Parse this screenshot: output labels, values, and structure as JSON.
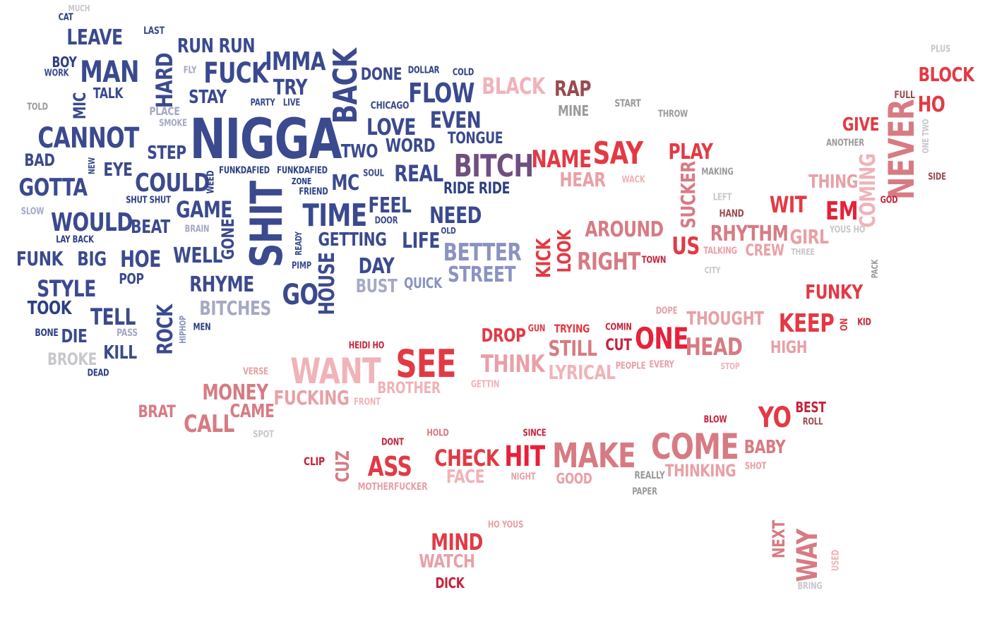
{
  "colors": {
    "blue_dark": "#2e3f82",
    "blue": "#3b4a8e",
    "blue_mid": "#5360a0",
    "blue_light": "#8a93c0",
    "gray_blue": "#a5a9c4",
    "gray": "#9a9a9a",
    "gray_light": "#c8c8cc",
    "plum": "#6f4f7f",
    "pink_light": "#f0b3b8",
    "pink": "#e8a0a6",
    "rose": "#d77b83",
    "red": "#e23a45",
    "red_bright": "#e8203a",
    "crimson": "#c4243b",
    "maroon": "#9a4a50",
    "brown_gray": "#8a6a6a"
  },
  "words": [
    {
      "text": "MUCH"
    },
    {
      "text": "CAT"
    },
    {
      "text": "LAST"
    },
    {
      "text": "LEAVE"
    },
    {
      "text": "BOY"
    },
    {
      "text": "WORK"
    },
    {
      "text": "MAN"
    },
    {
      "text": "MIC"
    },
    {
      "text": "TALK"
    },
    {
      "text": "TOLD"
    },
    {
      "text": "HARD"
    },
    {
      "text": "FLY"
    },
    {
      "text": "PLACE"
    },
    {
      "text": "SMOKE"
    },
    {
      "text": "RUN RUN"
    },
    {
      "text": "FUCK"
    },
    {
      "text": "STAY"
    },
    {
      "text": "PARTY"
    },
    {
      "text": "LIVE"
    },
    {
      "text": "IMMA"
    },
    {
      "text": "TRY"
    },
    {
      "text": "BACK"
    },
    {
      "text": "DONE"
    },
    {
      "text": "DOLLAR"
    },
    {
      "text": "COLD"
    },
    {
      "text": "CHICAGO"
    },
    {
      "text": "FLOW"
    },
    {
      "text": "BLACK"
    },
    {
      "text": "RAP"
    },
    {
      "text": "MINE"
    },
    {
      "text": "START"
    },
    {
      "text": "THROW"
    },
    {
      "text": "PLUS"
    },
    {
      "text": "BLOCK"
    },
    {
      "text": "FULL"
    },
    {
      "text": "HO"
    },
    {
      "text": "CANNOT"
    },
    {
      "text": "BAD"
    },
    {
      "text": "NEW"
    },
    {
      "text": "EYE"
    },
    {
      "text": "STEP"
    },
    {
      "text": "NIGGA"
    },
    {
      "text": "LOVE"
    },
    {
      "text": "EVEN"
    },
    {
      "text": "TONGUE"
    },
    {
      "text": "WORD"
    },
    {
      "text": "TWO"
    },
    {
      "text": "BITCH"
    },
    {
      "text": "NAME"
    },
    {
      "text": "SAY"
    },
    {
      "text": "PLAY"
    },
    {
      "text": "GIVE"
    },
    {
      "text": "ANOTHER"
    },
    {
      "text": "NEVER"
    },
    {
      "text": "ONE TWO"
    },
    {
      "text": "GOTTA"
    },
    {
      "text": "COULD"
    },
    {
      "text": "WEED"
    },
    {
      "text": "FUNKDAFIED"
    },
    {
      "text": "FUNKDAFIED"
    },
    {
      "text": "ZONE"
    },
    {
      "text": "FRIEND"
    },
    {
      "text": "MC"
    },
    {
      "text": "SOUL"
    },
    {
      "text": "REAL"
    },
    {
      "text": "RIDE RIDE"
    },
    {
      "text": "HEAR"
    },
    {
      "text": "WACK"
    },
    {
      "text": "SUCKER"
    },
    {
      "text": "MAKING"
    },
    {
      "text": "THING"
    },
    {
      "text": "COMING"
    },
    {
      "text": "SIDE"
    },
    {
      "text": "SHUT SHUT"
    },
    {
      "text": "SLOW"
    },
    {
      "text": "GAME"
    },
    {
      "text": "WOULD"
    },
    {
      "text": "BEAT"
    },
    {
      "text": "BRAIN"
    },
    {
      "text": "SHIT"
    },
    {
      "text": "TIME"
    },
    {
      "text": "FEEL"
    },
    {
      "text": "NEED"
    },
    {
      "text": "LEFT"
    },
    {
      "text": "HAND"
    },
    {
      "text": "WIT"
    },
    {
      "text": "EM"
    },
    {
      "text": "GOD"
    },
    {
      "text": "LAY BACK"
    },
    {
      "text": "GONE"
    },
    {
      "text": "DOOR"
    },
    {
      "text": "READY"
    },
    {
      "text": "GETTING"
    },
    {
      "text": "LIFE"
    },
    {
      "text": "OLD"
    },
    {
      "text": "AROUND"
    },
    {
      "text": "RHYTHM"
    },
    {
      "text": "GIRL"
    },
    {
      "text": "YOUS HO"
    },
    {
      "text": "FUNK"
    },
    {
      "text": "BIG"
    },
    {
      "text": "HOE"
    },
    {
      "text": "WELL"
    },
    {
      "text": "PIMP"
    },
    {
      "text": "BETTER"
    },
    {
      "text": "KICK"
    },
    {
      "text": "LOOK"
    },
    {
      "text": "US"
    },
    {
      "text": "TALKING"
    },
    {
      "text": "CREW"
    },
    {
      "text": "THREE"
    },
    {
      "text": "DAY"
    },
    {
      "text": "RIGHT"
    },
    {
      "text": "TOWN"
    },
    {
      "text": "CITY"
    },
    {
      "text": "PACK"
    },
    {
      "text": "POP"
    },
    {
      "text": "STYLE"
    },
    {
      "text": "RHYME"
    },
    {
      "text": "HOUSE"
    },
    {
      "text": "BUST"
    },
    {
      "text": "QUICK"
    },
    {
      "text": "STREET"
    },
    {
      "text": "GO"
    },
    {
      "text": "FUNKY"
    },
    {
      "text": "TOOK"
    },
    {
      "text": "TELL"
    },
    {
      "text": "BITCHES"
    },
    {
      "text": "ROCK"
    },
    {
      "text": "HIPHOP"
    },
    {
      "text": "DOPE"
    },
    {
      "text": "THOUGHT"
    },
    {
      "text": "KEEP"
    },
    {
      "text": "ON"
    },
    {
      "text": "KID"
    },
    {
      "text": "BONE"
    },
    {
      "text": "PASS"
    },
    {
      "text": "DIE"
    },
    {
      "text": "MEN"
    },
    {
      "text": "DROP"
    },
    {
      "text": "GUN"
    },
    {
      "text": "TRYING"
    },
    {
      "text": "COMIN"
    },
    {
      "text": "ONE"
    },
    {
      "text": "HEAD"
    },
    {
      "text": "HIGH"
    },
    {
      "text": "KILL"
    },
    {
      "text": "BROKE"
    },
    {
      "text": "HEIDI HO"
    },
    {
      "text": "SEE"
    },
    {
      "text": "STILL"
    },
    {
      "text": "CUT"
    },
    {
      "text": "THINK"
    },
    {
      "text": "DEAD"
    },
    {
      "text": "WANT"
    },
    {
      "text": "LYRICAL"
    },
    {
      "text": "PEOPLE"
    },
    {
      "text": "EVERY"
    },
    {
      "text": "STOP"
    },
    {
      "text": "VERSE"
    },
    {
      "text": "GETTIN"
    },
    {
      "text": "BROTHER"
    },
    {
      "text": "MONEY"
    },
    {
      "text": "FUCKING"
    },
    {
      "text": "FRONT"
    },
    {
      "text": "BRAT"
    },
    {
      "text": "CAME"
    },
    {
      "text": "CALL"
    },
    {
      "text": "SPOT"
    },
    {
      "text": "BLOW"
    },
    {
      "text": "YO"
    },
    {
      "text": "BEST"
    },
    {
      "text": "ROLL"
    },
    {
      "text": "DONT"
    },
    {
      "text": "HOLD"
    },
    {
      "text": "SINCE"
    },
    {
      "text": "CLIP"
    },
    {
      "text": "CUZ"
    },
    {
      "text": "ASS"
    },
    {
      "text": "CHECK"
    },
    {
      "text": "HIT"
    },
    {
      "text": "MAKE"
    },
    {
      "text": "COME"
    },
    {
      "text": "BABY"
    },
    {
      "text": "FACE"
    },
    {
      "text": "NIGHT"
    },
    {
      "text": "GOOD"
    },
    {
      "text": "REALLY"
    },
    {
      "text": "THINKING"
    },
    {
      "text": "SHOT"
    },
    {
      "text": "MOTHERFUCKER"
    },
    {
      "text": "PAPER"
    },
    {
      "text": "HO YOUS"
    },
    {
      "text": "MIND"
    },
    {
      "text": "WATCH"
    },
    {
      "text": "DICK"
    },
    {
      "text": "NEXT"
    },
    {
      "text": "WAY"
    },
    {
      "text": "USED"
    },
    {
      "text": "BRING"
    }
  ]
}
